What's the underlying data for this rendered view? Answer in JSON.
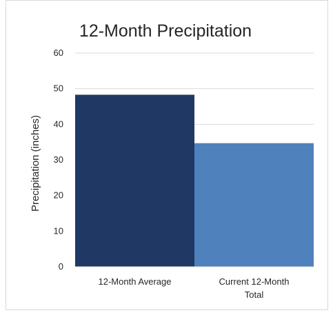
{
  "chart_data": {
    "type": "bar",
    "title": "12-Month Precipitation",
    "xlabel": "",
    "ylabel": "Precipitation (inches)",
    "ylim": [
      0,
      60
    ],
    "yticks": [
      0,
      10,
      20,
      30,
      40,
      50,
      60
    ],
    "grid": true,
    "categories": [
      "12-Month Average",
      "Current 12-Month Total"
    ],
    "category_label_lines": [
      [
        "12-Month Average"
      ],
      [
        "Current 12-Month",
        "Total"
      ]
    ],
    "values": [
      48.3,
      34.7
    ],
    "colors": [
      "#1f3864",
      "#4f81bd"
    ]
  }
}
